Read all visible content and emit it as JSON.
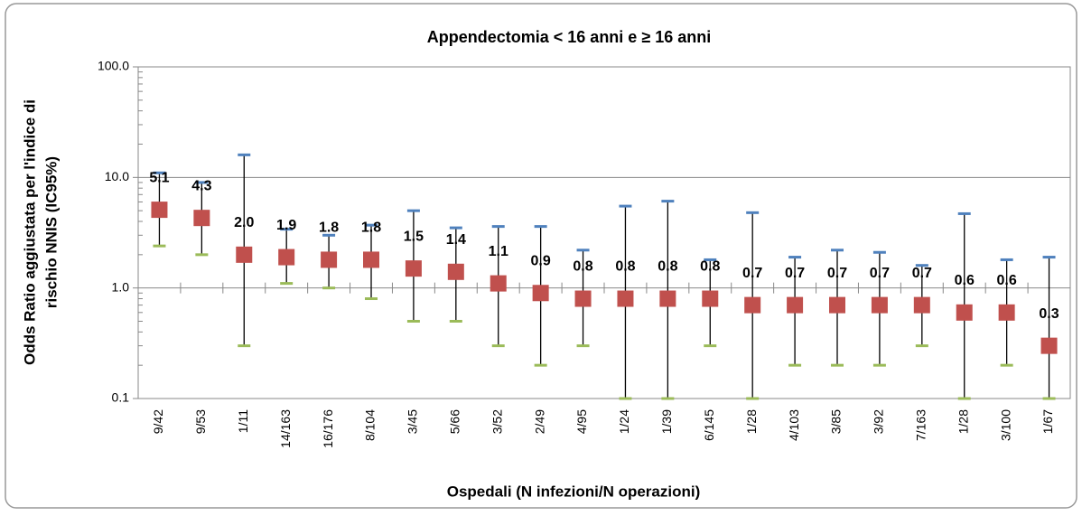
{
  "chart_data": {
    "type": "errorbar",
    "title": "Appendectomia < 16 anni e ≥ 16 anni",
    "x_label": "Ospedali (N infezioni/N operazioni)",
    "y_label": [
      "Odds Ratio aggiustata per l'indice di",
      "rischio NNIS (IC95%)"
    ],
    "categories": [
      "9/42",
      "9/53",
      "1/11",
      "14/163",
      "16/176",
      "8/104",
      "3/45",
      "5/66",
      "3/52",
      "2/49",
      "4/95",
      "1/24",
      "1/39",
      "6/145",
      "1/28",
      "4/103",
      "3/85",
      "3/92",
      "7/163",
      "1/28",
      "3/100",
      "1/67"
    ],
    "series": [
      {
        "color": "#c0504d",
        "values": [
          5.1,
          4.3,
          2,
          1.9,
          1.8,
          1.8,
          1.5,
          1.4,
          1.1,
          0.9,
          0.8,
          0.8,
          0.8,
          0.8,
          0.7,
          0.7,
          0.7,
          0.7,
          0.7,
          0.6,
          0.6,
          0.3
        ],
        "value_labels": [
          "5.1",
          "4.3",
          "2.0",
          "1.9",
          "1.8",
          "1.8",
          "1.5",
          "1.4",
          "1.1",
          "0.9",
          "0.8",
          "0.8",
          "0.8",
          "0.8",
          "0.7",
          "0.7",
          "0.7",
          "0.7",
          "0.7",
          "0.6",
          "0.6",
          "0.3"
        ],
        "upper": [
          11,
          9,
          16,
          3.4,
          3,
          3.7,
          5,
          3.5,
          3.6,
          3.6,
          2.2,
          5.5,
          6.1,
          1.8,
          4.8,
          1.9,
          2.2,
          2.1,
          1.6,
          4.7,
          1.8,
          1.9
        ],
        "lower": [
          2.4,
          2,
          0.3,
          1.1,
          1,
          0.8,
          0.5,
          0.5,
          0.3,
          0.2,
          0.3,
          0.1,
          0.1,
          0.3,
          0.1,
          0.2,
          0.2,
          0.2,
          0.3,
          0.1,
          0.2,
          0.1
        ],
        "upper_color": "#4f81bd",
        "lower_color": "#9bbb59"
      }
    ],
    "log_y": true,
    "ylim": [
      0.1,
      100
    ],
    "yticks": [
      0.1,
      {
        "value": 1,
        "label": "1.0"
      },
      {
        "value": 10,
        "label": "10.0"
      },
      {
        "value": 100,
        "label": "100.0"
      }
    ],
    "grid": true
  }
}
